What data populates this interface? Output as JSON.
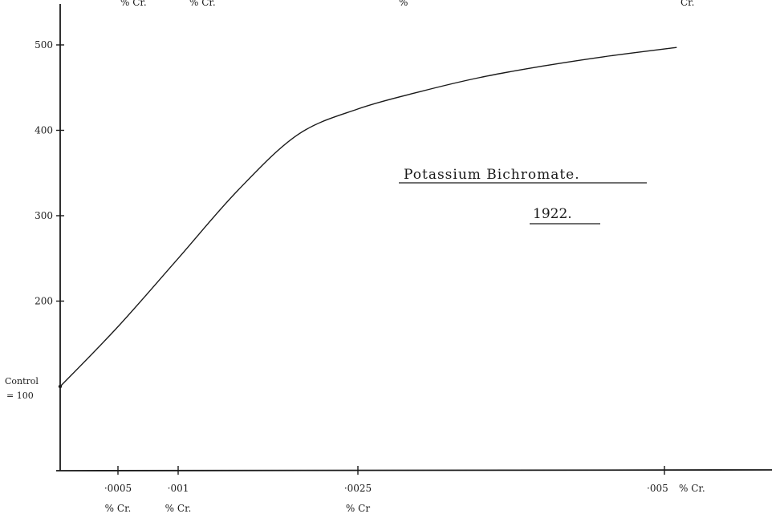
{
  "chart_data": {
    "type": "line",
    "title": "Potassium Bichromate.",
    "subtitle": "1922.",
    "xlabel": "",
    "ylabel": "",
    "xlim": [
      0.0,
      0.0055
    ],
    "ylim": [
      0,
      550
    ],
    "x_ticks": [
      {
        "value": 0.0005,
        "label": "·0005",
        "unit": "% Cr."
      },
      {
        "value": 0.001,
        "label": "·001",
        "unit": "% Cr."
      },
      {
        "value": 0.0025,
        "label": "·0025",
        "unit": "% Cr"
      },
      {
        "value": 0.005,
        "label": "·005",
        "unit": "% Cr."
      }
    ],
    "y_ticks": [
      200,
      300,
      400,
      500
    ],
    "y_control_label": [
      "Control",
      "= 100"
    ],
    "top_cut_labels": [
      "% Cr.",
      "% Cr.",
      "%",
      "Cr."
    ],
    "series": [
      {
        "x": [
          0.0,
          0.0005,
          0.001,
          0.0015,
          0.002,
          0.0025,
          0.003,
          0.0035,
          0.004,
          0.0045,
          0.0051
        ],
        "y": [
          100,
          170,
          250,
          330,
          395,
          425,
          445,
          462,
          475,
          486,
          497
        ]
      }
    ],
    "grid": false,
    "legend": "none"
  }
}
